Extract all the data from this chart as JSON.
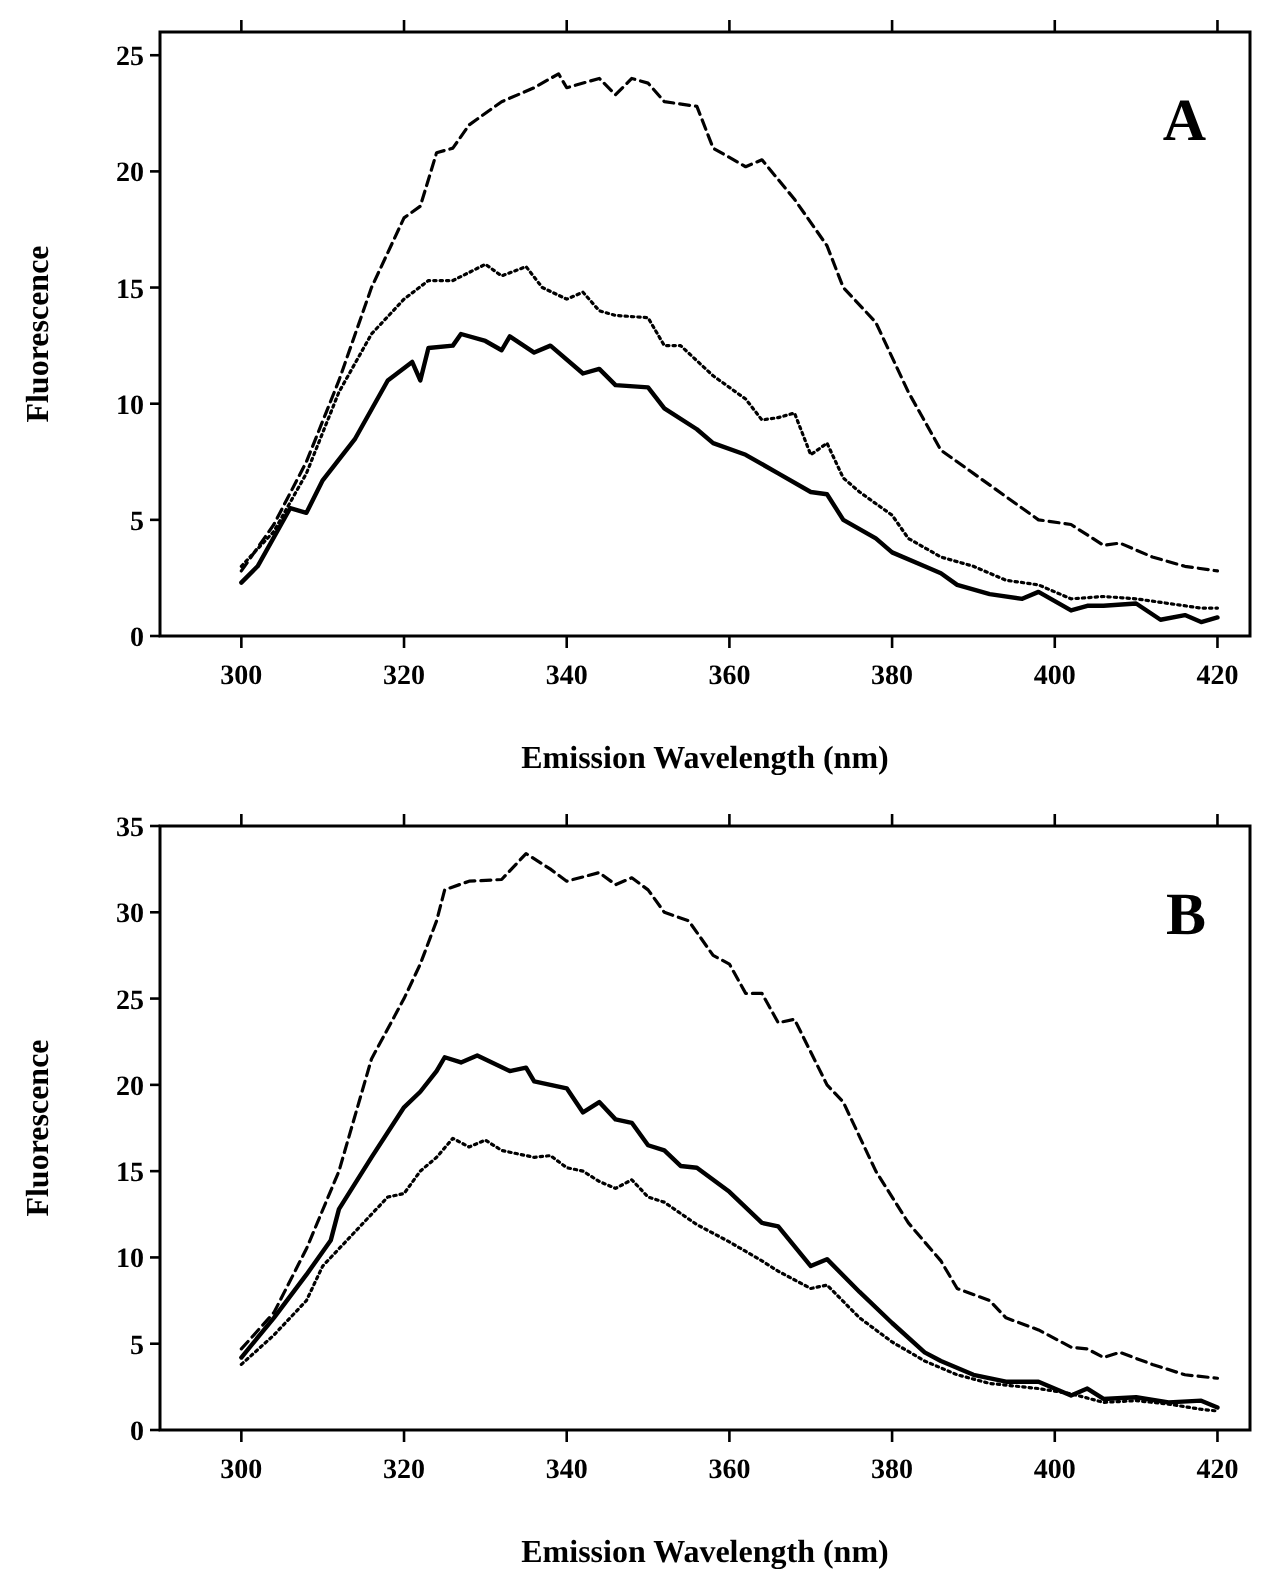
{
  "chart_data": [
    {
      "type": "line",
      "xlabel": "Emission Wavelength (nm)",
      "ylabel": "Fluorescence",
      "annotations": [
        "A"
      ],
      "xlim": [
        290,
        424
      ],
      "xticks": [
        300,
        320,
        340,
        360,
        380,
        400,
        420
      ],
      "ylim": [
        0,
        26
      ],
      "yticks": [
        0,
        5,
        10,
        15,
        20,
        25
      ],
      "grid": false,
      "marker": "none",
      "series": [
        {
          "color": "#000000",
          "line_style": "dashed",
          "x": [
            300,
            304,
            308,
            312,
            316,
            320,
            322,
            324,
            326,
            328,
            332,
            336,
            339,
            340,
            344,
            346,
            348,
            350,
            352,
            356,
            358,
            362,
            364,
            368,
            372,
            374,
            378,
            382,
            386,
            390,
            394,
            398,
            402,
            406,
            408,
            412,
            416,
            420
          ],
          "values": [
            2.8,
            4.8,
            7.5,
            11,
            15,
            18,
            18.5,
            20.8,
            21,
            22,
            23,
            23.6,
            24.2,
            23.6,
            24,
            23.3,
            24,
            23.8,
            23,
            22.8,
            21,
            20.2,
            20.5,
            18.8,
            16.8,
            15,
            13.5,
            10.5,
            8,
            7,
            6,
            5,
            4.8,
            3.9,
            4,
            3.4,
            3,
            2.8
          ]
        },
        {
          "color": "#000000",
          "line_style": "dotted",
          "x": [
            300,
            304,
            308,
            312,
            316,
            320,
            323,
            326,
            330,
            332,
            335,
            337,
            340,
            342,
            344,
            346,
            350,
            352,
            354,
            358,
            362,
            364,
            366,
            368,
            370,
            372,
            374,
            376,
            380,
            382,
            386,
            390,
            394,
            398,
            402,
            406,
            410,
            414,
            418,
            420
          ],
          "values": [
            3,
            4.5,
            7,
            10.5,
            13,
            14.5,
            15.3,
            15.3,
            16,
            15.5,
            15.9,
            15,
            14.5,
            14.8,
            14,
            13.8,
            13.7,
            12.5,
            12.5,
            11.2,
            10.2,
            9.3,
            9.4,
            9.6,
            7.8,
            8.3,
            6.8,
            6.2,
            5.2,
            4.2,
            3.4,
            3,
            2.4,
            2.2,
            1.6,
            1.7,
            1.6,
            1.4,
            1.2,
            1.2
          ]
        },
        {
          "color": "#000000",
          "line_style": "solid",
          "x": [
            300,
            302,
            306,
            308,
            310,
            314,
            318,
            321,
            322,
            323,
            326,
            327,
            330,
            332,
            333,
            336,
            338,
            342,
            344,
            346,
            350,
            352,
            356,
            358,
            362,
            366,
            370,
            372,
            374,
            378,
            380,
            384,
            386,
            388,
            392,
            396,
            398,
            402,
            404,
            406,
            410,
            413,
            416,
            418,
            420
          ],
          "values": [
            2.3,
            3,
            5.5,
            5.3,
            6.7,
            8.5,
            11,
            11.8,
            11,
            12.4,
            12.5,
            13,
            12.7,
            12.3,
            12.9,
            12.2,
            12.5,
            11.3,
            11.5,
            10.8,
            10.7,
            9.8,
            8.9,
            8.3,
            7.8,
            7,
            6.2,
            6.1,
            5,
            4.2,
            3.6,
            3,
            2.7,
            2.2,
            1.8,
            1.6,
            1.9,
            1.1,
            1.3,
            1.3,
            1.4,
            0.7,
            0.9,
            0.6,
            0.8
          ]
        }
      ]
    },
    {
      "type": "line",
      "xlabel": "Emission Wavelength (nm)",
      "ylabel": "Fluorescence",
      "annotations": [
        "B"
      ],
      "xlim": [
        290,
        424
      ],
      "xticks": [
        300,
        320,
        340,
        360,
        380,
        400,
        420
      ],
      "ylim": [
        0,
        35
      ],
      "yticks": [
        0,
        5,
        10,
        15,
        20,
        25,
        30,
        35
      ],
      "grid": false,
      "marker": "none",
      "series": [
        {
          "color": "#000000",
          "line_style": "dashed",
          "x": [
            300,
            304,
            308,
            312,
            316,
            320,
            322,
            324,
            325,
            328,
            332,
            335,
            338,
            340,
            344,
            346,
            348,
            350,
            352,
            355,
            358,
            360,
            362,
            364,
            366,
            368,
            372,
            374,
            378,
            382,
            386,
            388,
            392,
            394,
            398,
            402,
            404,
            406,
            408,
            412,
            416,
            420
          ],
          "values": [
            4.7,
            6.8,
            10.5,
            15,
            21.5,
            25,
            27,
            29.5,
            31.3,
            31.8,
            31.9,
            33.4,
            32.5,
            31.8,
            32.3,
            31.6,
            32,
            31.3,
            30,
            29.5,
            27.5,
            27,
            25.3,
            25.3,
            23.6,
            23.8,
            20,
            19,
            15,
            12,
            9.8,
            8.2,
            7.5,
            6.5,
            5.8,
            4.8,
            4.7,
            4.2,
            4.5,
            3.8,
            3.2,
            3
          ]
        },
        {
          "color": "#000000",
          "line_style": "solid",
          "x": [
            300,
            304,
            308,
            311,
            312,
            316,
            320,
            322,
            324,
            325,
            327,
            329,
            333,
            335,
            336,
            338,
            340,
            342,
            344,
            346,
            348,
            350,
            352,
            354,
            356,
            360,
            364,
            366,
            370,
            372,
            376,
            380,
            384,
            386,
            390,
            394,
            398,
            402,
            404,
            406,
            410,
            414,
            418,
            420
          ],
          "values": [
            4.2,
            6.5,
            9,
            11,
            12.8,
            15.8,
            18.7,
            19.6,
            20.8,
            21.6,
            21.3,
            21.7,
            20.8,
            21,
            20.2,
            20,
            19.8,
            18.4,
            19,
            18,
            17.8,
            16.5,
            16.2,
            15.3,
            15.2,
            13.8,
            12,
            11.8,
            9.5,
            9.9,
            8,
            6.2,
            4.5,
            4,
            3.2,
            2.8,
            2.8,
            2,
            2.4,
            1.8,
            1.9,
            1.6,
            1.7,
            1.3
          ]
        },
        {
          "color": "#000000",
          "line_style": "dotted",
          "x": [
            300,
            304,
            308,
            310,
            314,
            318,
            320,
            322,
            324,
            326,
            328,
            330,
            332,
            336,
            338,
            340,
            342,
            344,
            346,
            348,
            350,
            352,
            356,
            360,
            364,
            366,
            370,
            372,
            376,
            380,
            384,
            388,
            392,
            398,
            402,
            406,
            410,
            414,
            418,
            420
          ],
          "values": [
            3.8,
            5.5,
            7.5,
            9.5,
            11.5,
            13.5,
            13.7,
            15,
            15.8,
            16.9,
            16.4,
            16.8,
            16.2,
            15.8,
            15.9,
            15.2,
            15,
            14.4,
            14,
            14.5,
            13.5,
            13.2,
            11.9,
            10.9,
            9.8,
            9.2,
            8.2,
            8.4,
            6.5,
            5.1,
            4,
            3.2,
            2.7,
            2.4,
            2.1,
            1.6,
            1.7,
            1.5,
            1.2,
            1.1
          ]
        }
      ]
    }
  ]
}
